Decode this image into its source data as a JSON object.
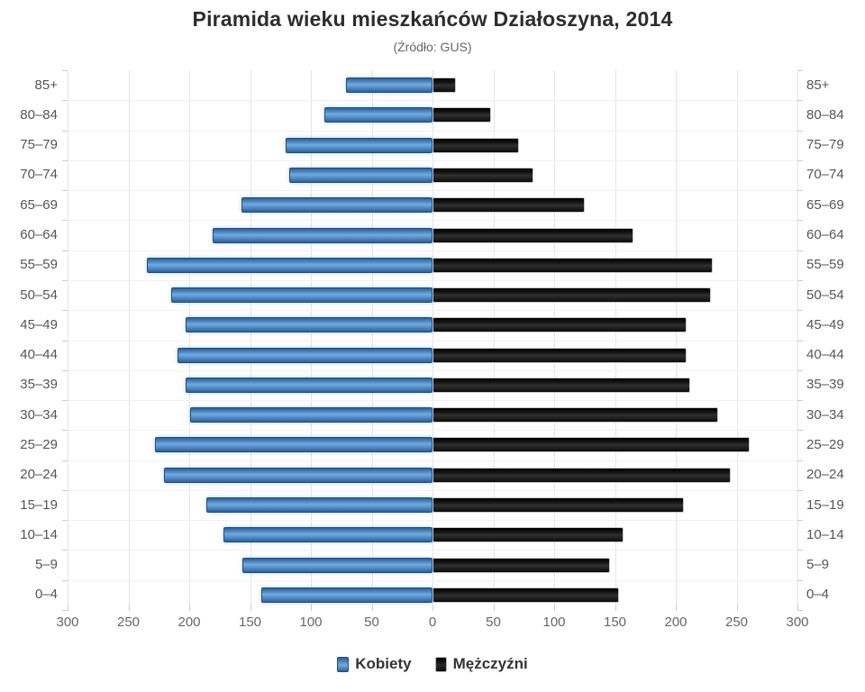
{
  "title": "Piramida wieku mieszkańców Działoszyna, 2014",
  "subtitle": "(Źródło: GUS)",
  "chart_data": {
    "type": "bar",
    "variant": "population-pyramid",
    "title": "Piramida wieku mieszkańców Działoszyna, 2014",
    "subtitle": "(Źródło: GUS)",
    "categories": [
      "85+",
      "80–84",
      "75–79",
      "70–74",
      "65–69",
      "60–64",
      "55–59",
      "50–54",
      "45–49",
      "40–44",
      "35–39",
      "30–34",
      "25–29",
      "20–24",
      "15–19",
      "10–14",
      "5–9",
      "0–4"
    ],
    "series": [
      {
        "name": "Kobiety",
        "side": "left",
        "color": "#4d89c5",
        "values": [
          71,
          89,
          121,
          118,
          157,
          181,
          235,
          215,
          203,
          210,
          203,
          199,
          228,
          221,
          186,
          172,
          156,
          141
        ]
      },
      {
        "name": "Mężczyźni",
        "side": "right",
        "color": "#161616",
        "values": [
          19,
          48,
          71,
          83,
          125,
          165,
          230,
          229,
          209,
          209,
          212,
          235,
          261,
          245,
          207,
          157,
          146,
          153
        ]
      }
    ],
    "xlim": [
      0,
      300
    ],
    "tick_step": 50,
    "x_tick_labels": [
      "300",
      "250",
      "200",
      "150",
      "100",
      "50",
      "0",
      "50",
      "100",
      "150",
      "200",
      "250",
      "300"
    ],
    "grid": true,
    "legend_position": "bottom"
  },
  "legend": {
    "items": [
      {
        "label": "Kobiety",
        "color": "#4d89c5"
      },
      {
        "label": "Mężczyźni",
        "color": "#161616"
      }
    ]
  }
}
